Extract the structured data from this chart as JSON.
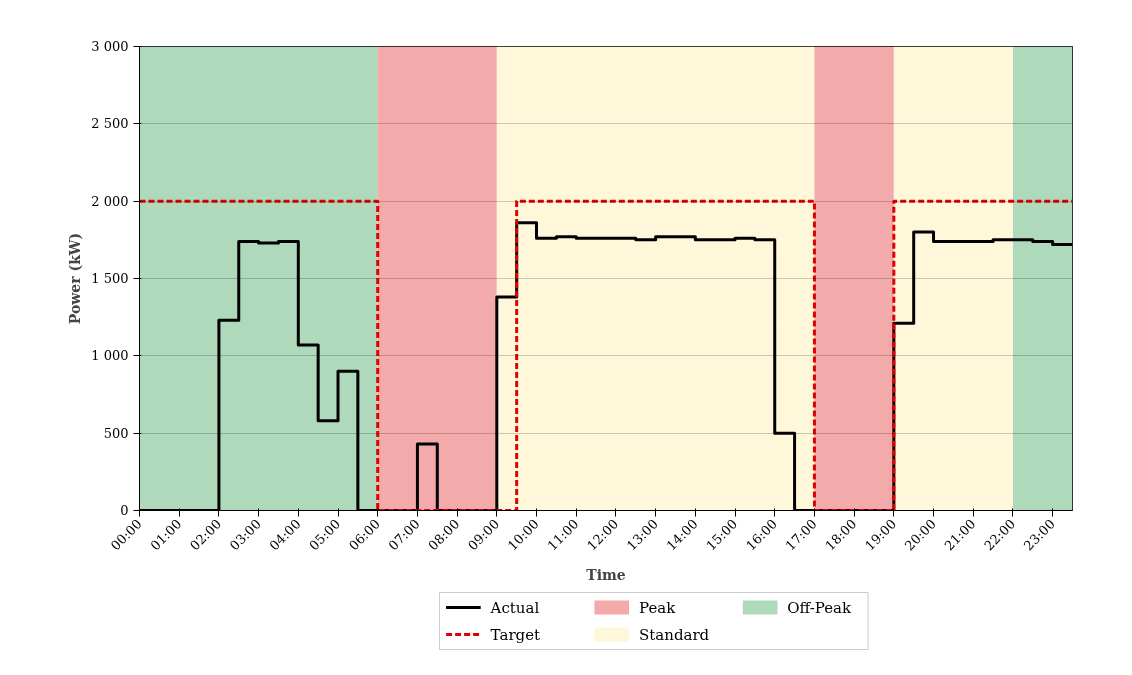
{
  "chart_data": {
    "type": "step",
    "xlabel": "Time",
    "ylabel": "Power (kW)",
    "xlim": [
      0,
      23.5
    ],
    "ylim": [
      0,
      3000
    ],
    "xticks": [
      {
        "value": 0,
        "label": "00:00"
      },
      {
        "value": 1,
        "label": "01:00"
      },
      {
        "value": 2,
        "label": "02:00"
      },
      {
        "value": 3,
        "label": "03:00"
      },
      {
        "value": 4,
        "label": "04:00"
      },
      {
        "value": 5,
        "label": "05:00"
      },
      {
        "value": 6,
        "label": "06:00"
      },
      {
        "value": 7,
        "label": "07:00"
      },
      {
        "value": 8,
        "label": "08:00"
      },
      {
        "value": 9,
        "label": "09:00"
      },
      {
        "value": 10,
        "label": "10:00"
      },
      {
        "value": 11,
        "label": "11:00"
      },
      {
        "value": 12,
        "label": "12:00"
      },
      {
        "value": 13,
        "label": "13:00"
      },
      {
        "value": 14,
        "label": "14:00"
      },
      {
        "value": 15,
        "label": "15:00"
      },
      {
        "value": 16,
        "label": "16:00"
      },
      {
        "value": 17,
        "label": "17:00"
      },
      {
        "value": 18,
        "label": "18:00"
      },
      {
        "value": 19,
        "label": "19:00"
      },
      {
        "value": 20,
        "label": "20:00"
      },
      {
        "value": 21,
        "label": "21:00"
      },
      {
        "value": 22,
        "label": "22:00"
      },
      {
        "value": 23,
        "label": "23:00"
      }
    ],
    "yticks": [
      0,
      500,
      {
        "value": 1000,
        "label": "1 000"
      },
      {
        "value": 1500,
        "label": "1 500"
      },
      {
        "value": 2000,
        "label": "2 000"
      },
      {
        "value": 2500,
        "label": "2 500"
      },
      {
        "value": 3000,
        "label": "3 000"
      }
    ],
    "series": [
      {
        "name": "Actual",
        "color": "#000000",
        "line_style": "solid",
        "x": [
          0,
          0.5,
          1,
          1.5,
          2,
          2.5,
          3,
          3.5,
          4,
          4.5,
          5,
          5.5,
          6,
          6.5,
          7,
          7.5,
          8,
          8.5,
          9,
          9.5,
          10,
          10.5,
          11,
          11.5,
          12,
          12.5,
          13,
          13.5,
          14,
          14.5,
          15,
          15.5,
          16,
          16.5,
          17,
          17.5,
          18,
          18.5,
          19,
          19.5,
          20,
          20.5,
          21,
          21.5,
          22,
          22.5,
          23,
          23.5
        ],
        "values": [
          0,
          0,
          0,
          0,
          1230,
          1740,
          1730,
          1740,
          1070,
          580,
          900,
          0,
          0,
          0,
          430,
          0,
          0,
          0,
          1380,
          1860,
          1760,
          1770,
          1760,
          1760,
          1760,
          1750,
          1770,
          1770,
          1750,
          1750,
          1760,
          1750,
          500,
          0,
          0,
          0,
          0,
          0,
          1210,
          1800,
          1740,
          1740,
          1740,
          1750,
          1750,
          1740,
          1720,
          1720
        ]
      },
      {
        "name": "Target",
        "color": "#e00000",
        "line_style": "dashed",
        "x": [
          0,
          6,
          9.5,
          17,
          19,
          23.5
        ],
        "values": [
          2000,
          0,
          2000,
          0,
          2000,
          2000
        ]
      }
    ],
    "bands": [
      {
        "axis": "x",
        "from": 0,
        "to": 6,
        "label": "Off-Peak",
        "color": "#aed9bb"
      },
      {
        "axis": "x",
        "from": 6,
        "to": 9,
        "label": "Peak",
        "color": "#f2aaaa"
      },
      {
        "axis": "x",
        "from": 9,
        "to": 17,
        "label": "Standard",
        "color": "#fff7d9"
      },
      {
        "axis": "x",
        "from": 17,
        "to": 19,
        "color": "#f2aaaa"
      },
      {
        "axis": "x",
        "from": 19,
        "to": 22,
        "color": "#fff7d9"
      },
      {
        "axis": "x",
        "from": 22,
        "to": 23.5,
        "color": "#aed9bb"
      }
    ],
    "grid": "y",
    "legend": "bottom",
    "marker": "none"
  }
}
